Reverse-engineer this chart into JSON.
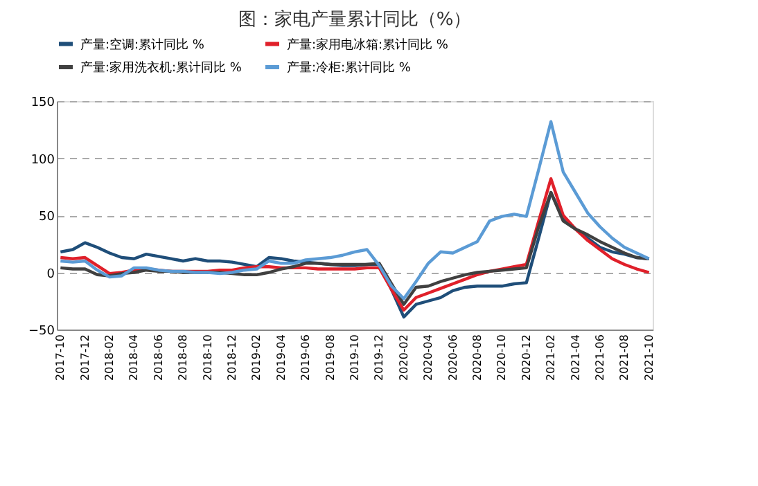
{
  "chart_data": {
    "type": "line",
    "title": "图：家电产量累计同比（%）",
    "categories": [
      "2017-10",
      null,
      "2017-12",
      null,
      "2018-02",
      null,
      "2018-04",
      null,
      "2018-06",
      null,
      "2018-08",
      null,
      "2018-10",
      null,
      "2018-12",
      null,
      "2019-02",
      null,
      "2019-04",
      null,
      "2019-06",
      null,
      "2019-08",
      null,
      "2019-10",
      null,
      "2019-12",
      null,
      "2020-02",
      null,
      "2020-04",
      null,
      "2020-06",
      null,
      "2020-08",
      null,
      "2020-10",
      null,
      "2020-12",
      null,
      "2021-02",
      null,
      "2021-04",
      null,
      "2021-06",
      null,
      "2021-08",
      null,
      "2021-10"
    ],
    "series": [
      {
        "name": "产量:空调:累计同比 %",
        "color": "#1f4e79",
        "values": [
          18,
          20,
          26,
          22,
          17,
          13,
          12,
          16,
          14,
          12,
          10,
          12,
          10,
          10,
          9,
          7,
          5,
          13,
          12,
          10,
          9,
          8,
          7,
          6,
          6,
          7,
          7,
          -15,
          -39,
          -28,
          -25,
          -22,
          -16,
          -13,
          -12,
          -12,
          -12,
          -10,
          -9,
          30,
          70,
          47,
          38,
          30,
          22,
          18,
          16,
          13,
          12
        ]
      },
      {
        "name": "产量:家用电冰箱:累计同比 %",
        "color": "#e0202a",
        "values": [
          13,
          12,
          13,
          6,
          -1,
          0,
          2,
          3,
          2,
          1,
          1,
          1,
          1,
          2,
          2,
          4,
          5,
          5,
          4,
          4,
          4,
          3,
          3,
          3,
          3,
          4,
          4,
          -15,
          -33,
          -22,
          -18,
          -14,
          -10,
          -6,
          -2,
          1,
          3,
          5,
          7,
          45,
          82,
          50,
          38,
          28,
          20,
          12,
          7,
          3,
          0
        ]
      },
      {
        "name": "产量:家用洗衣机:累计同比 %",
        "color": "#404040",
        "values": [
          4,
          3,
          3,
          -2,
          -3,
          -1,
          0,
          2,
          1,
          1,
          0,
          0,
          0,
          0,
          -1,
          -2,
          -2,
          0,
          3,
          5,
          8,
          8,
          7,
          7,
          7,
          7,
          8,
          -10,
          -28,
          -13,
          -12,
          -8,
          -5,
          -2,
          0,
          1,
          2,
          3,
          4,
          40,
          70,
          45,
          38,
          33,
          27,
          22,
          17,
          13,
          12
        ]
      },
      {
        "name": "产量:冷柜:累计同比 %",
        "color": "#5b9bd5",
        "values": [
          10,
          9,
          10,
          2,
          -4,
          -3,
          4,
          4,
          2,
          1,
          1,
          0,
          0,
          -1,
          0,
          2,
          3,
          10,
          8,
          8,
          11,
          12,
          13,
          15,
          18,
          20,
          6,
          -12,
          -23,
          -8,
          8,
          18,
          17,
          22,
          27,
          45,
          49,
          51,
          49,
          90,
          132,
          88,
          70,
          52,
          40,
          30,
          22,
          17,
          12
        ]
      }
    ],
    "ylim": [
      -50,
      150
    ],
    "yticks": [
      -50,
      0,
      50,
      100,
      150
    ],
    "grid": "y",
    "legend": "top",
    "line_style": "solid",
    "marker": "none"
  }
}
